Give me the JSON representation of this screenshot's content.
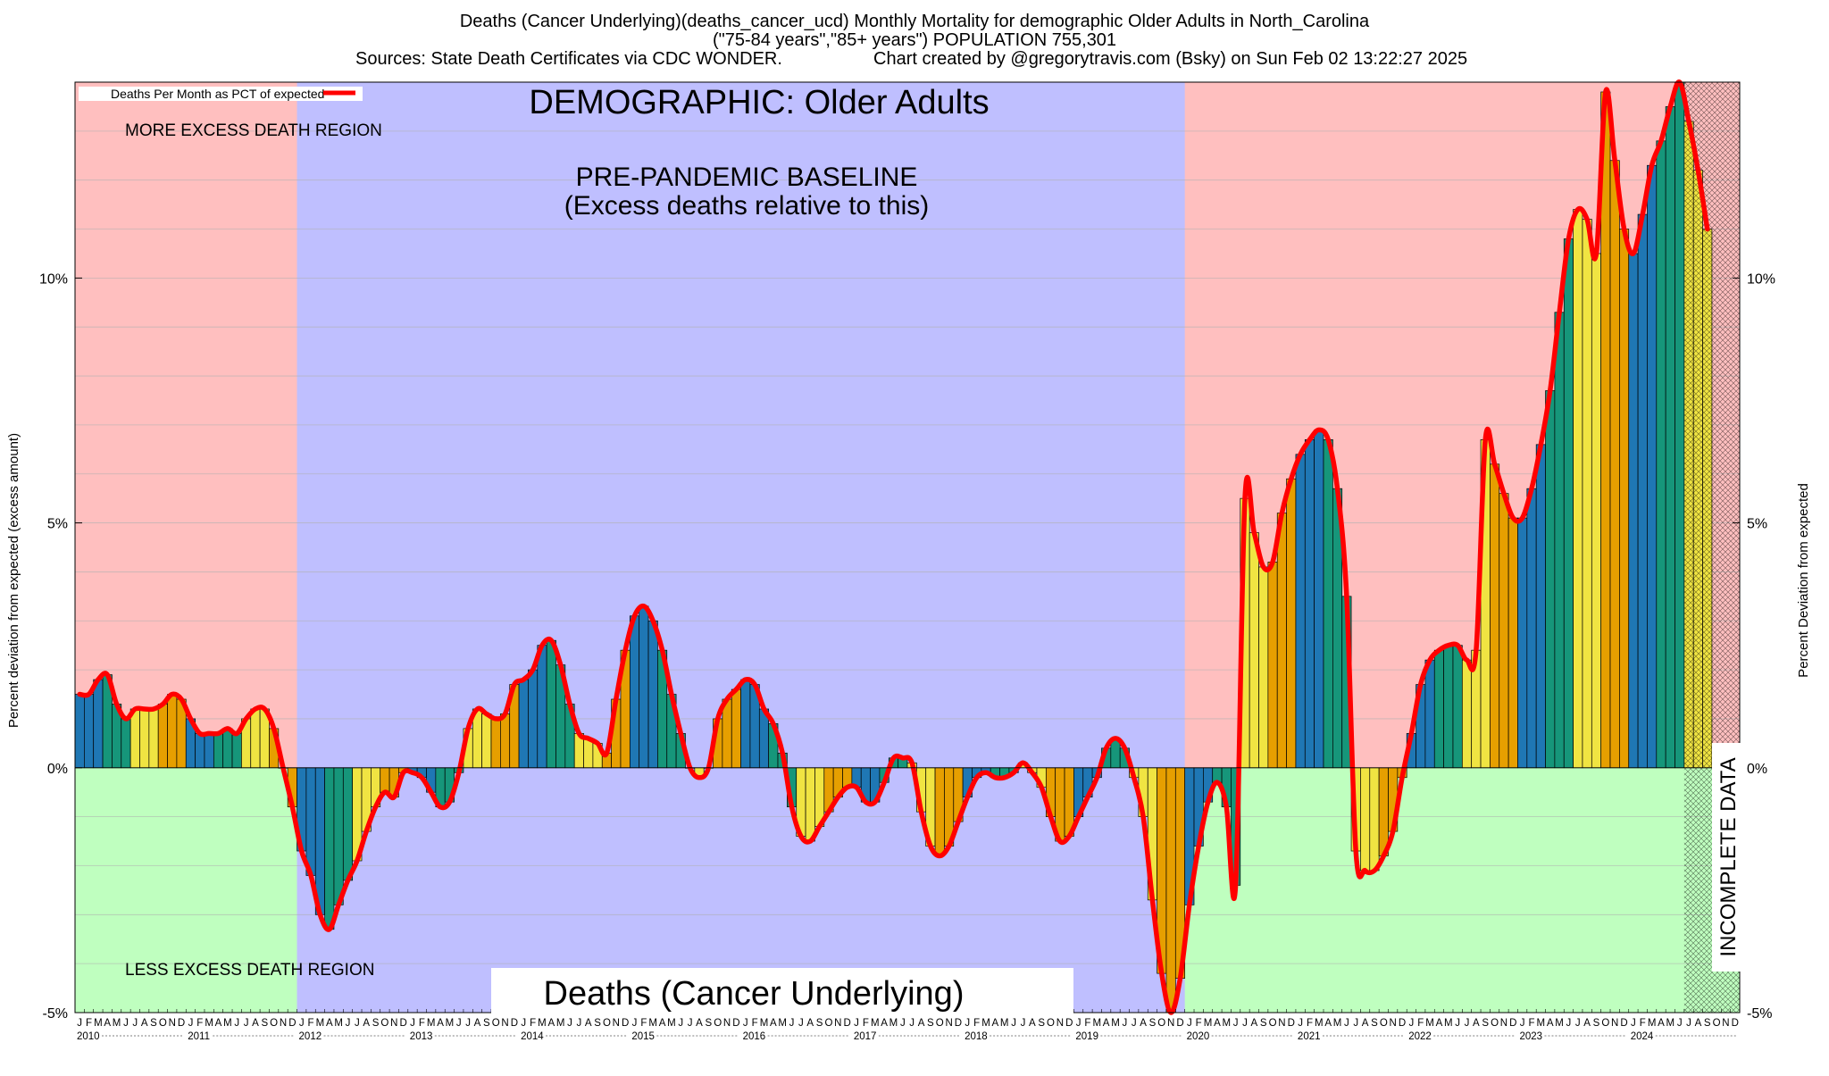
{
  "header": {
    "title_line1": "Deaths (Cancer Underlying)(deaths_cancer_ucd) Monthly Mortality for demographic Older Adults in North_Carolina",
    "title_line2": "(\"75-84 years\",\"85+ years\") POPULATION 755,301",
    "title_line3a": "Sources: State Death Certificates via CDC WONDER.",
    "title_line3b": "Chart created by @gregorytravis.com (Bsky) on Sun Feb 02 13:22:27 2025"
  },
  "labels": {
    "legend": "Deaths Per Month as PCT of expected",
    "demographic": "DEMOGRAPHIC: Older Adults",
    "baseline_line1": "PRE-PANDEMIC BASELINE",
    "baseline_line2": "(Excess deaths relative to this)",
    "more_excess": "MORE EXCESS DEATH REGION",
    "less_excess": "LESS EXCESS DEATH REGION",
    "bottom_title": "Deaths (Cancer Underlying)",
    "incomplete": "INCOMPLETE DATA",
    "ylabel_left": "Percent deviation from expected (excess amount)",
    "ylabel_right": "Percent Deviation from expected"
  },
  "colors": {
    "excess_region": "#ffbfbf",
    "deficit_region": "#bfffbf",
    "baseline_region": "#bfbfff",
    "curve": "#ff0000",
    "bar_q1": "#1f77b4",
    "bar_q2": "#16967a",
    "bar_q3": "#f0e442",
    "bar_q4": "#e69f00"
  },
  "chart_data": {
    "type": "bar",
    "title": "Deaths (Cancer Underlying)(deaths_cancer_ucd) Monthly Mortality for demographic Older Adults in North_Carolina",
    "xlabel": "",
    "ylabel": "Percent deviation from expected (excess amount)",
    "ylim": [
      -5,
      14
    ],
    "yticks": [
      -5,
      0,
      5,
      10
    ],
    "ytick_labels": [
      "-5%",
      "0%",
      "5%",
      "10%"
    ],
    "start_year": 2010,
    "month_letters": [
      "J",
      "F",
      "M",
      "A",
      "M",
      "J",
      "J",
      "A",
      "S",
      "O",
      "N",
      "D"
    ],
    "years": [
      "2010",
      "2011",
      "2012",
      "2013",
      "2014",
      "2015",
      "2016",
      "2017",
      "2018",
      "2019",
      "2020",
      "2021",
      "2022",
      "2023",
      "2024"
    ],
    "baseline_years": [
      2012,
      2019
    ],
    "incomplete_from_month_index": 174,
    "series": [
      {
        "name": "Deaths Per Month as PCT of expected",
        "values": [
          1.5,
          1.5,
          1.8,
          1.9,
          1.3,
          1.0,
          1.2,
          1.2,
          1.2,
          1.3,
          1.5,
          1.4,
          1.0,
          0.7,
          0.7,
          0.7,
          0.8,
          0.7,
          1.0,
          1.2,
          1.2,
          0.8,
          0.0,
          -0.8,
          -1.7,
          -2.2,
          -3.0,
          -3.3,
          -2.8,
          -2.3,
          -1.9,
          -1.3,
          -0.8,
          -0.5,
          -0.6,
          -0.1,
          -0.1,
          -0.2,
          -0.5,
          -0.8,
          -0.7,
          -0.1,
          0.8,
          1.2,
          1.1,
          1.0,
          1.1,
          1.7,
          1.8,
          2.0,
          2.5,
          2.6,
          2.1,
          1.3,
          0.7,
          0.6,
          0.5,
          0.3,
          1.4,
          2.4,
          3.1,
          3.3,
          3.0,
          2.4,
          1.5,
          0.7,
          0.0,
          -0.2,
          0.0,
          1.0,
          1.4,
          1.6,
          1.8,
          1.7,
          1.2,
          0.9,
          0.3,
          -0.8,
          -1.4,
          -1.5,
          -1.2,
          -0.9,
          -0.6,
          -0.4,
          -0.4,
          -0.7,
          -0.7,
          -0.3,
          0.2,
          0.2,
          0.1,
          -0.9,
          -1.6,
          -1.8,
          -1.6,
          -1.1,
          -0.6,
          -0.2,
          -0.1,
          -0.2,
          -0.2,
          -0.1,
          0.1,
          -0.1,
          -0.4,
          -1.0,
          -1.5,
          -1.4,
          -1.0,
          -0.6,
          -0.2,
          0.4,
          0.6,
          0.4,
          -0.2,
          -1.0,
          -2.7,
          -4.2,
          -5.0,
          -4.3,
          -2.8,
          -1.6,
          -0.7,
          -0.3,
          -0.8,
          -2.4,
          5.5,
          4.8,
          4.1,
          4.2,
          5.2,
          5.9,
          6.4,
          6.7,
          6.9,
          6.7,
          5.7,
          3.5,
          -1.7,
          -2.1,
          -2.1,
          -1.8,
          -1.3,
          -0.2,
          0.7,
          1.7,
          2.2,
          2.4,
          2.5,
          2.5,
          2.2,
          2.4,
          6.7,
          6.2,
          5.6,
          5.1,
          5.1,
          5.7,
          6.6,
          7.7,
          9.3,
          10.8,
          11.4,
          11.2,
          10.5,
          13.8,
          12.4,
          11.0,
          10.5,
          11.3,
          12.3,
          12.8,
          13.5,
          14.0,
          13.2,
          12.2,
          11.0
        ]
      }
    ]
  }
}
